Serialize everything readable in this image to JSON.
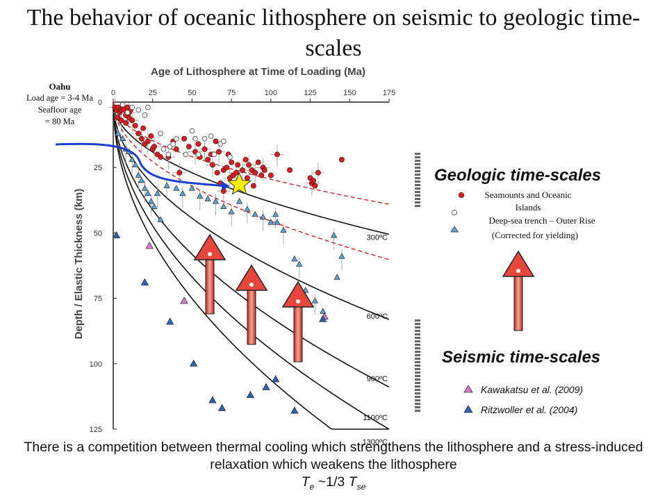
{
  "title": "The behavior of oceanic lithosphere on seismic to geologic time-scales",
  "annotation": {
    "heading": "Oahu",
    "line1": "Load age = 3-4 Ma",
    "line2": "Seafloor age",
    "line3": "= 80 Ma"
  },
  "caption": {
    "text": "There is a competition between thermal cooling which strengthens the lithosphere and a stress-induced relaxation which weakens the lithosphere",
    "formula_lhs": "T",
    "formula_lhs_sub": "e",
    "formula_mid": " ~1/3 ",
    "formula_rhs": "T",
    "formula_rhs_sub": "se"
  },
  "legend": {
    "geologic_heading": "Geologic time-scales",
    "seamounts": "Seamounts and Oceanic",
    "seamounts2": "Islands",
    "trench": "Deep-sea trench – Outer Rise",
    "trench2": "(Corrected for yielding)",
    "seismic_heading": "Seismic time-scales",
    "kawakatsu": "Kawakatsu et al. (2009)",
    "ritzwoller": "Ritzwoller et al. (2004)"
  },
  "colors": {
    "seamount": "#d42020",
    "trench": "#5aa9dd",
    "kawakatsu": "#e07ad0",
    "ritzwoller": "#2a62b5",
    "arrow": "#e8463a",
    "blue_arrow": "#1d3fd0",
    "star": "#ffee00"
  },
  "chart_data": {
    "type": "scatter",
    "title": "Age of Lithosphere at Time of Loading (Ma)",
    "xlabel": "Age of Lithosphere at Time of Loading (Ma)",
    "ylabel": "Depth / Elastic Thickness (km)",
    "xlim": [
      0,
      175
    ],
    "ylim": [
      125,
      0
    ],
    "x_ticks": [
      0,
      25,
      50,
      75,
      100,
      125,
      150,
      175
    ],
    "y_ticks": [
      0,
      25,
      50,
      75,
      100,
      125
    ],
    "isotherms": [
      {
        "label": "300ºC",
        "scale": 3.82
      },
      {
        "label": "600ºC",
        "scale": 6.28
      },
      {
        "label": "900ºC",
        "scale": 8.23
      },
      {
        "label": "1100ºC",
        "scale": 9.45
      },
      {
        "label": "1300ºC",
        "scale": 10.62
      }
    ],
    "dashed_isotherms": [
      {
        "scale": 2.95
      },
      {
        "scale": 4.55
      }
    ],
    "oahu_point": {
      "x": 80,
      "y": 31.5
    },
    "series": [
      {
        "name": "Seamounts and Oceanic Islands",
        "marker": "circle-red",
        "points": [
          [
            1,
            2
          ],
          [
            2,
            3
          ],
          [
            3,
            2
          ],
          [
            4,
            4
          ],
          [
            5,
            3
          ],
          [
            6,
            2
          ],
          [
            7,
            3
          ],
          [
            8,
            5
          ],
          [
            9,
            2
          ],
          [
            10,
            4
          ],
          [
            11,
            3
          ],
          [
            3,
            6
          ],
          [
            5,
            7
          ],
          [
            8,
            8
          ],
          [
            10,
            6
          ],
          [
            12,
            7
          ],
          [
            14,
            9
          ],
          [
            16,
            12
          ],
          [
            18,
            14
          ],
          [
            19,
            10
          ],
          [
            20,
            16
          ],
          [
            22,
            15
          ],
          [
            24,
            13
          ],
          [
            25,
            18
          ],
          [
            26,
            17
          ],
          [
            28,
            20
          ],
          [
            30,
            21
          ],
          [
            35,
            21
          ],
          [
            38,
            15
          ],
          [
            40,
            18
          ],
          [
            42,
            27
          ],
          [
            45,
            14
          ],
          [
            48,
            17
          ],
          [
            52,
            19
          ],
          [
            54,
            16
          ],
          [
            55,
            21
          ],
          [
            58,
            18
          ],
          [
            60,
            22
          ],
          [
            62,
            20
          ],
          [
            63,
            24
          ],
          [
            65,
            15
          ],
          [
            66,
            27
          ],
          [
            67,
            19
          ],
          [
            68,
            31
          ],
          [
            70,
            26
          ],
          [
            70,
            34
          ],
          [
            72,
            25
          ],
          [
            73,
            20
          ],
          [
            74,
            29
          ],
          [
            75,
            23
          ],
          [
            76,
            28
          ],
          [
            78,
            27
          ],
          [
            79,
            24
          ],
          [
            80,
            30
          ],
          [
            82,
            26
          ],
          [
            84,
            22
          ],
          [
            85,
            29
          ],
          [
            86,
            24
          ],
          [
            88,
            26
          ],
          [
            89,
            32
          ],
          [
            90,
            27
          ],
          [
            92,
            23
          ],
          [
            94,
            28
          ],
          [
            95,
            25
          ],
          [
            96,
            26
          ],
          [
            100,
            28
          ],
          [
            104,
            20
          ],
          [
            112,
            26
          ],
          [
            125,
            29
          ],
          [
            126,
            31
          ],
          [
            127,
            30
          ],
          [
            128,
            32
          ],
          [
            130,
            27
          ],
          [
            145,
            22
          ]
        ]
      },
      {
        "name": "open circles",
        "marker": "circle-open",
        "points": [
          [
            6,
            1
          ],
          [
            9,
            4
          ],
          [
            12,
            2
          ],
          [
            16,
            3
          ],
          [
            20,
            5
          ],
          [
            22,
            2
          ],
          [
            30,
            12
          ],
          [
            32,
            18
          ],
          [
            35,
            20
          ],
          [
            36,
            17
          ],
          [
            38,
            16
          ],
          [
            40,
            14
          ],
          [
            46,
            20
          ],
          [
            50,
            11
          ],
          [
            52,
            14
          ],
          [
            54,
            20
          ],
          [
            58,
            14
          ],
          [
            62,
            13
          ],
          [
            64,
            20
          ],
          [
            68,
            16
          ],
          [
            70,
            15
          ],
          [
            74,
            21
          ]
        ]
      },
      {
        "name": "Deep-sea trench – Outer Rise",
        "marker": "triangle-light",
        "points": [
          [
            3,
            12
          ],
          [
            6,
            14
          ],
          [
            8,
            18
          ],
          [
            10,
            19
          ],
          [
            12,
            22
          ],
          [
            14,
            24
          ],
          [
            16,
            28
          ],
          [
            18,
            30
          ],
          [
            20,
            33
          ],
          [
            22,
            35
          ],
          [
            24,
            38
          ],
          [
            26,
            40
          ],
          [
            28,
            35
          ],
          [
            30,
            45
          ],
          [
            34,
            32
          ],
          [
            40,
            33
          ],
          [
            44,
            35
          ],
          [
            50,
            33
          ],
          [
            55,
            36
          ],
          [
            60,
            37
          ],
          [
            65,
            38
          ],
          [
            70,
            40
          ],
          [
            75,
            42
          ],
          [
            80,
            38
          ],
          [
            85,
            41
          ],
          [
            90,
            43
          ],
          [
            95,
            44
          ],
          [
            100,
            46
          ],
          [
            103,
            43
          ],
          [
            104,
            46
          ],
          [
            108,
            49
          ],
          [
            115,
            60
          ],
          [
            118,
            62
          ],
          [
            122,
            72
          ],
          [
            128,
            76
          ],
          [
            133,
            80
          ],
          [
            140,
            51
          ],
          [
            142,
            67
          ],
          [
            145,
            59
          ]
        ]
      },
      {
        "name": "Kawakatsu et al. (2009)",
        "marker": "triangle-pink",
        "points": [
          [
            23,
            55
          ],
          [
            45,
            76
          ],
          [
            134,
            82
          ]
        ]
      },
      {
        "name": "Ritzwoller et al. (2004)",
        "marker": "triangle-dark",
        "points": [
          [
            2,
            51
          ],
          [
            20,
            69
          ],
          [
            36,
            84
          ],
          [
            51,
            100
          ],
          [
            63,
            114
          ],
          [
            69,
            117
          ],
          [
            87,
            112
          ],
          [
            97,
            109
          ],
          [
            103,
            106
          ],
          [
            115,
            118
          ],
          [
            133,
            83
          ]
        ]
      }
    ]
  }
}
